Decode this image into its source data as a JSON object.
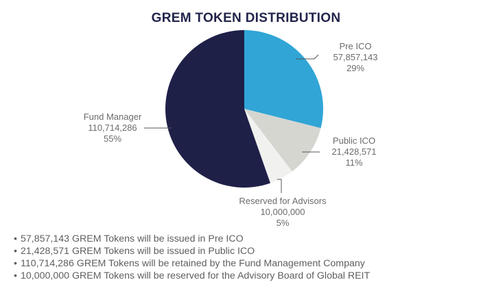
{
  "chart_data": {
    "type": "pie",
    "title": "GREM TOKEN DISTRIBUTION",
    "slices": [
      {
        "label": "Pre ICO",
        "value": 57857143,
        "value_text": "57,857,143",
        "percent_text": "29%",
        "color": "#30a5d6"
      },
      {
        "label": "Public ICO",
        "value": 21428571,
        "value_text": "21,428,571",
        "percent_text": "11%",
        "color": "#d6d6d1"
      },
      {
        "label": "Reserved for Advisors",
        "value": 10000000,
        "value_text": "10,000,000",
        "percent_text": "5%",
        "color": "#f1f1ef"
      },
      {
        "label": "Fund Manager",
        "value": 110714286,
        "value_text": "110,714,286",
        "percent_text": "55%",
        "color": "#1f2048"
      }
    ]
  },
  "bullets": [
    "57,857,143 GREM Tokens will be issued in Pre ICO",
    "21,428,571 GREM Tokens will be issued in Public ICO",
    "110,714,286 GREM Tokens will be retained by the Fund Management Company",
    "10,000,000 GREM Tokens will be reserved for the Advisory Board of Global REIT"
  ],
  "bullet_marker": "•",
  "leader_color": "#555555"
}
